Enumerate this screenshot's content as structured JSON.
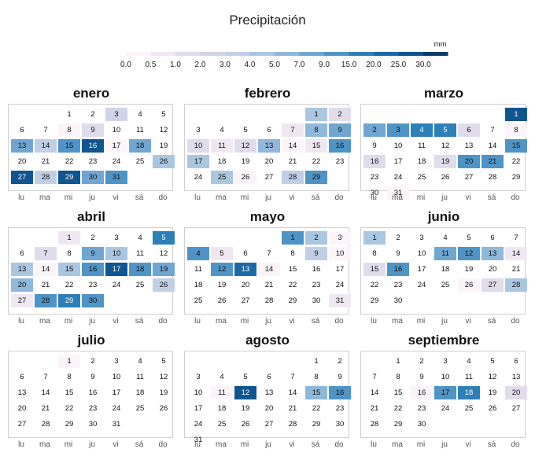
{
  "chart_data": {
    "type": "heatmap",
    "title": "",
    "legend": {
      "title": "Precipitación",
      "unit": "mm",
      "breaks": [
        "0.0",
        "0.5",
        "1.0",
        "2.0",
        "3.0",
        "4.0",
        "5.0",
        "7.0",
        "9.0",
        "15.0",
        "20.0",
        "25.0",
        "30.0"
      ],
      "colors": [
        "#fbf5fa",
        "#efe8f2",
        "#e0dcec",
        "#d1d3e8",
        "#c1cfe6",
        "#aac7e2",
        "#8fb8db",
        "#70a6d1",
        "#4f94c6",
        "#2d7fb8",
        "#1c6aa5",
        "#0f5590",
        "#083e6a"
      ]
    },
    "weekdays": [
      "lu",
      "ma",
      "mi",
      "ju",
      "vi",
      "sá",
      "do"
    ],
    "months": [
      {
        "name": "enero",
        "first_weekday": 2,
        "days": 31,
        "values": {
          "1": 0,
          "2": 0,
          "3": 4,
          "4": 0,
          "5": 0,
          "6": 0,
          "7": 0,
          "8": 1,
          "9": 3,
          "10": 0,
          "11": 0,
          "12": 0,
          "13": 8,
          "14": 5,
          "15": 9,
          "16": 12,
          "17": 1,
          "18": 8,
          "19": 0,
          "20": 0,
          "21": 0,
          "22": 0,
          "23": 0,
          "24": 0,
          "25": 0,
          "26": 6,
          "27": 12,
          "28": 5,
          "29": 12,
          "30": 8,
          "31": 9
        }
      },
      {
        "name": "febrero",
        "first_weekday": 5,
        "days": 29,
        "values": {
          "1": 6,
          "2": 3,
          "3": 0,
          "4": 0,
          "5": 0,
          "6": 0,
          "7": 2,
          "8": 7,
          "9": 8,
          "10": 3,
          "11": 2,
          "12": 3,
          "13": 7,
          "14": 1,
          "15": 2,
          "16": 9,
          "17": 6,
          "18": 0,
          "19": 0,
          "20": 0,
          "21": 0,
          "22": 0,
          "23": 0,
          "24": 0,
          "25": 6,
          "26": 1,
          "27": 0,
          "28": 5,
          "29": 9
        }
      },
      {
        "name": "marzo",
        "first_weekday": 6,
        "days": 31,
        "values": {
          "1": 12,
          "2": 8,
          "3": 9,
          "4": 10,
          "5": 10,
          "6": 3,
          "7": 0,
          "8": 1,
          "9": 0,
          "10": 0,
          "11": 0,
          "12": 0,
          "13": 0,
          "14": 0,
          "15": 9,
          "16": 3,
          "17": 0,
          "18": 0,
          "19": 3,
          "20": 9,
          "21": 9,
          "22": 0,
          "23": 0,
          "24": 0,
          "25": 0,
          "26": 0,
          "27": 0,
          "28": 0,
          "29": 0,
          "30": 0,
          "31": 1
        }
      },
      {
        "name": "abril",
        "first_weekday": 2,
        "days": 30,
        "values": {
          "1": 2,
          "2": 0,
          "3": 0,
          "4": 0,
          "5": 10,
          "6": 0,
          "7": 3,
          "8": 0,
          "9": 8,
          "10": 6,
          "11": 0,
          "12": 0,
          "13": 6,
          "14": 1,
          "15": 6,
          "16": 9,
          "17": 12,
          "18": 9,
          "19": 8,
          "20": 7,
          "21": 0,
          "22": 0,
          "23": 0,
          "24": 0,
          "25": 0,
          "26": 5,
          "27": 2,
          "28": 9,
          "29": 10,
          "30": 9
        }
      },
      {
        "name": "mayo",
        "first_weekday": 4,
        "days": 31,
        "values": {
          "1": 9,
          "2": 6,
          "3": 1,
          "4": 9,
          "5": 2,
          "6": 0,
          "7": 0,
          "8": 0,
          "9": 5,
          "10": 1,
          "11": 0,
          "12": 9,
          "13": 11,
          "14": 1,
          "15": 0,
          "16": 0,
          "17": 0,
          "18": 0,
          "19": 0,
          "20": 0,
          "21": 0,
          "22": 0,
          "23": 0,
          "24": 0,
          "25": 0,
          "26": 0,
          "27": 0,
          "28": 0,
          "29": 0,
          "30": 0,
          "31": 2
        }
      },
      {
        "name": "junio",
        "first_weekday": 0,
        "days": 30,
        "values": {
          "1": 6,
          "2": 0,
          "3": 0,
          "4": 0,
          "5": 0,
          "6": 0,
          "7": 0,
          "8": 0,
          "9": 0,
          "10": 0,
          "11": 8,
          "12": 9,
          "13": 7,
          "14": 2,
          "15": 3,
          "16": 9,
          "17": 0,
          "18": 0,
          "19": 0,
          "20": 0,
          "21": 0,
          "22": 0,
          "23": 0,
          "24": 0,
          "25": 0,
          "26": 1,
          "27": 3,
          "28": 6,
          "29": 0,
          "30": 0
        }
      },
      {
        "name": "julio",
        "first_weekday": 2,
        "days": 31,
        "values": {
          "1": 1,
          "2": 0,
          "3": 0,
          "4": 0,
          "5": 0,
          "6": 0,
          "7": 0,
          "8": 0,
          "9": 0,
          "10": 0,
          "11": 0,
          "12": 0,
          "13": 0,
          "14": 0,
          "15": 0,
          "16": 0,
          "17": 0,
          "18": 0,
          "19": 0,
          "20": 0,
          "21": 0,
          "22": 0,
          "23": 0,
          "24": 0,
          "25": 0,
          "26": 0,
          "27": 0,
          "28": 0,
          "29": 0,
          "30": 0,
          "31": 0
        }
      },
      {
        "name": "agosto",
        "first_weekday": 5,
        "days": 31,
        "values": {
          "1": 0,
          "2": 0,
          "3": 0,
          "4": 0,
          "5": 0,
          "6": 0,
          "7": 0,
          "8": 0,
          "9": 0,
          "10": 0,
          "11": 1,
          "12": 12,
          "13": 0,
          "14": 0,
          "15": 7,
          "16": 9,
          "17": 0,
          "18": 0,
          "19": 0,
          "20": 0,
          "21": 0,
          "22": 0,
          "23": 0,
          "24": 0,
          "25": 0,
          "26": 0,
          "27": 0,
          "28": 0,
          "29": 0,
          "30": 0,
          "31": 0
        }
      },
      {
        "name": "septiembre",
        "first_weekday": 1,
        "days": 30,
        "values": {
          "1": 0,
          "2": 0,
          "3": 0,
          "4": 0,
          "5": 0,
          "6": 0,
          "7": 0,
          "8": 0,
          "9": 0,
          "10": 0,
          "11": 0,
          "12": 0,
          "13": 0,
          "14": 0,
          "15": 0,
          "16": 1,
          "17": 9,
          "18": 10,
          "19": 0,
          "20": 3,
          "21": 0,
          "22": 0,
          "23": 0,
          "24": 0,
          "25": 0,
          "26": 0,
          "27": 0,
          "28": 0,
          "29": 0,
          "30": 0
        }
      }
    ]
  }
}
